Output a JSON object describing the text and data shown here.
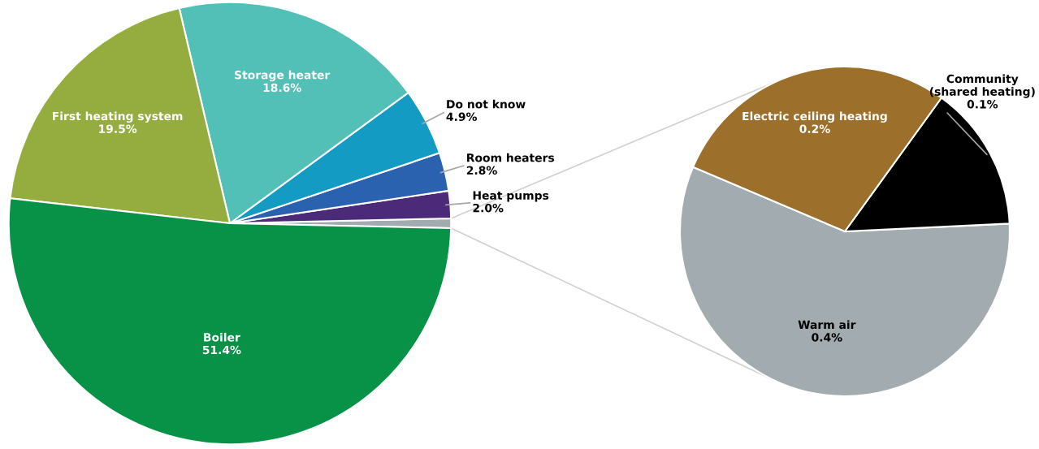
{
  "chart_data": [
    {
      "type": "pie",
      "categories": [
        null,
        "Heat pumps",
        "Room heaters",
        "Do not know",
        "Storage heater",
        "First heating system",
        "Boiler"
      ],
      "values": [
        0.7,
        2.0,
        2.8,
        4.9,
        18.6,
        19.5,
        51.4
      ],
      "colors": [
        "#a2abb0",
        "#4b2a7a",
        "#2a62b0",
        "#149bc3",
        "#52c0b6",
        "#95ad3f",
        "#079247"
      ],
      "value_labels": [
        null,
        "2.0%",
        "2.8%",
        "4.9%",
        "18.6%",
        "19.5%",
        "51.4%"
      ]
    },
    {
      "type": "pie",
      "categories": [
        "Warm air",
        "Community\n(shared heating)",
        "Electric ceiling heating"
      ],
      "values": [
        0.4,
        0.1,
        0.2
      ],
      "colors": [
        "#a2abb0",
        "#000000",
        "#9c6f2b"
      ],
      "value_labels": [
        "0.4%",
        "0.1%",
        "0.2%"
      ]
    }
  ]
}
